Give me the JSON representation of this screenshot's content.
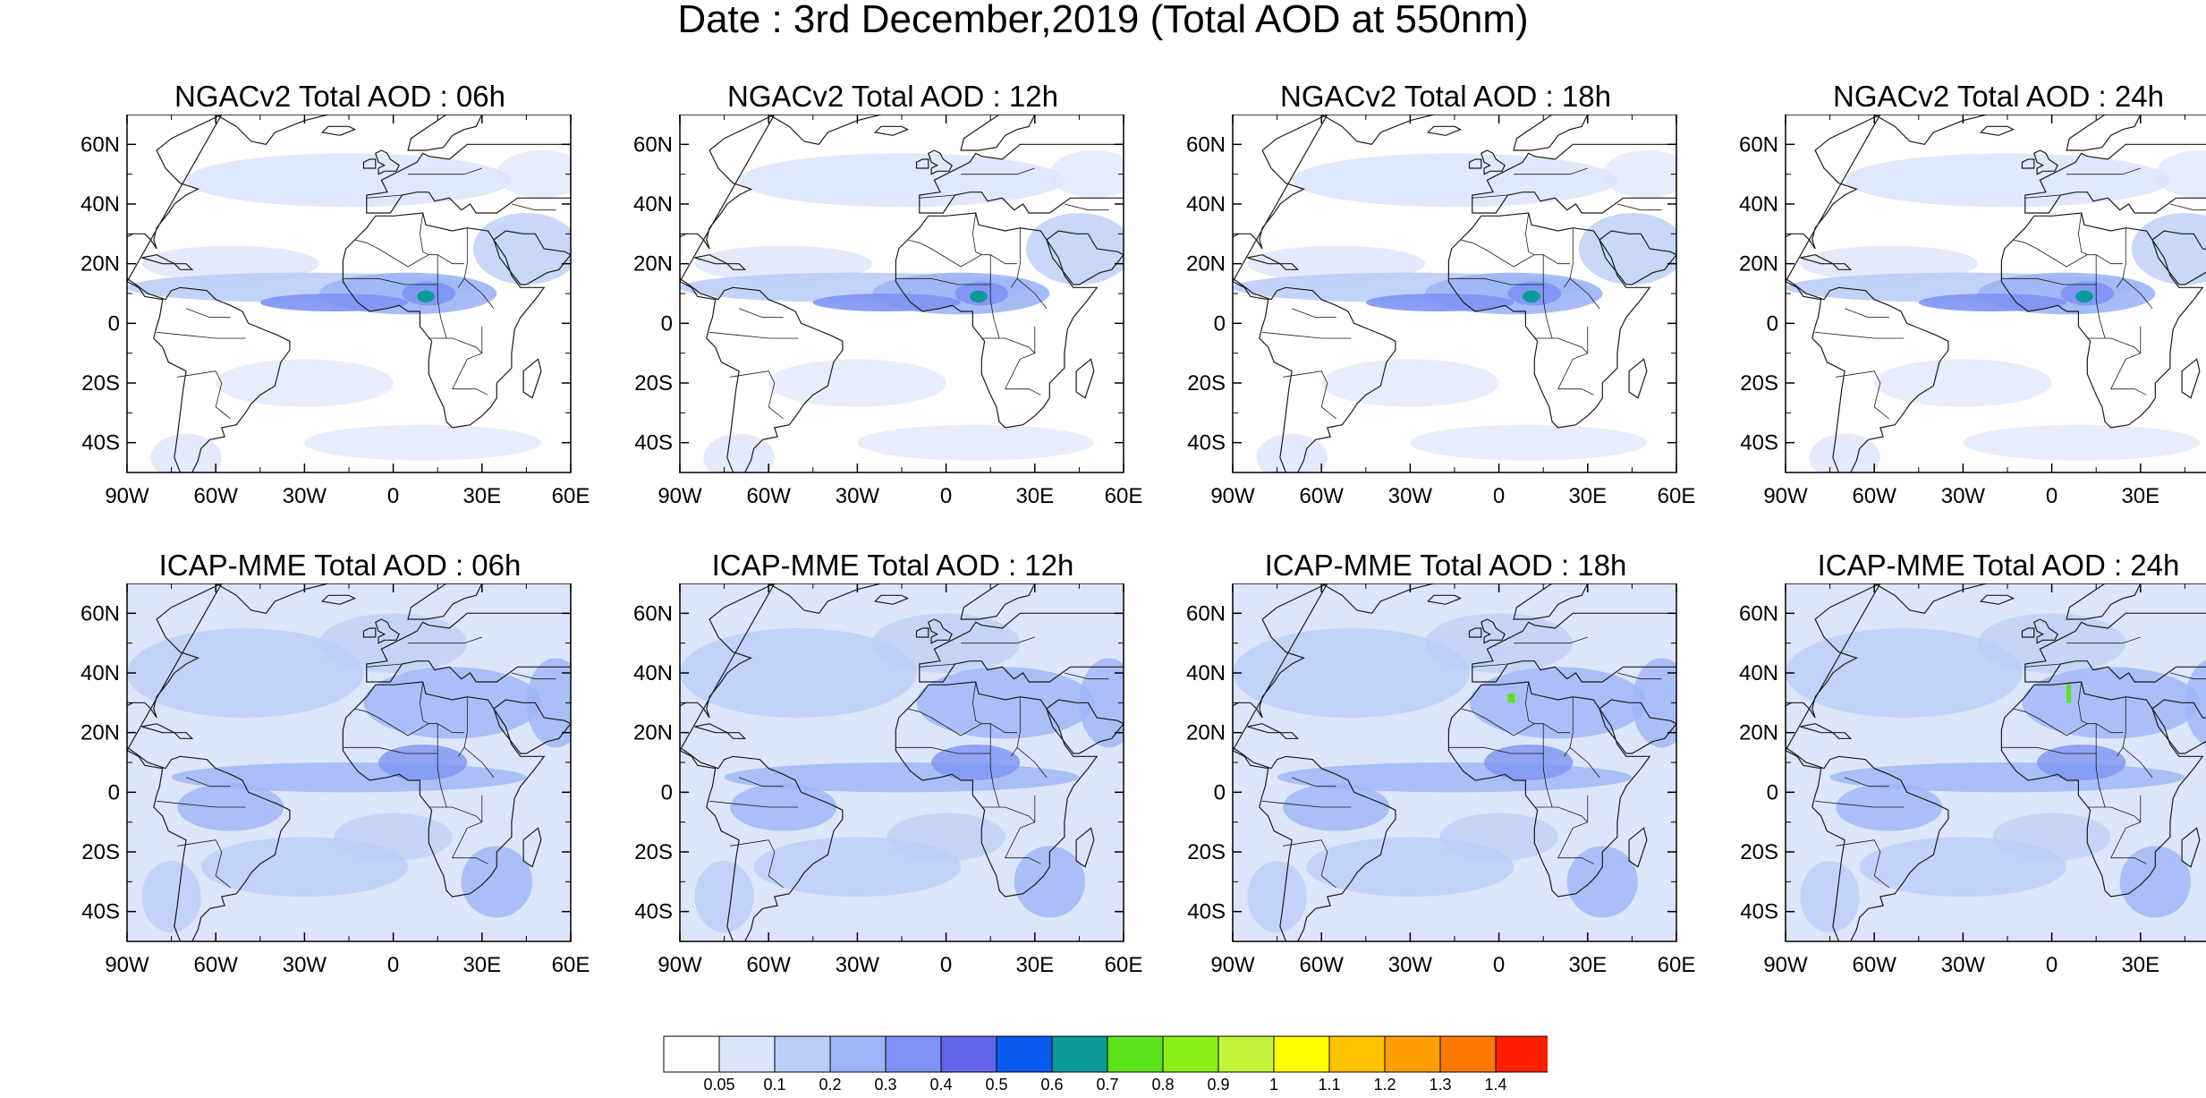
{
  "title": "Date : 3rd December,2019 (Total AOD at 550nm)",
  "axes": {
    "lon_ticks": [
      "90W",
      "60W",
      "30W",
      "0",
      "30E",
      "60E"
    ],
    "lat_ticks": [
      "60N",
      "40N",
      "20N",
      "0",
      "20S",
      "40S"
    ]
  },
  "panels": [
    {
      "title": "NGACv2 Total AOD : 06h",
      "model": "NGACv2",
      "hour": "06h"
    },
    {
      "title": "NGACv2 Total AOD : 12h",
      "model": "NGACv2",
      "hour": "12h"
    },
    {
      "title": "NGACv2 Total AOD : 18h",
      "model": "NGACv2",
      "hour": "18h"
    },
    {
      "title": "NGACv2 Total AOD : 24h",
      "model": "NGACv2",
      "hour": "24h"
    },
    {
      "title": "ICAP-MME Total AOD : 06h",
      "model": "ICAP-MME",
      "hour": "06h"
    },
    {
      "title": "ICAP-MME Total AOD : 12h",
      "model": "ICAP-MME",
      "hour": "12h"
    },
    {
      "title": "ICAP-MME Total AOD : 18h",
      "model": "ICAP-MME",
      "hour": "18h"
    },
    {
      "title": "ICAP-MME Total AOD : 24h",
      "model": "ICAP-MME",
      "hour": "24h"
    }
  ],
  "colorbar": {
    "labels": [
      "0.05",
      "0.1",
      "0.2",
      "0.3",
      "0.4",
      "0.5",
      "0.6",
      "0.7",
      "0.8",
      "0.9",
      "1",
      "1.1",
      "1.2",
      "1.3",
      "1.4"
    ],
    "colors": [
      "#ffffff",
      "#dde5fb",
      "#bccdf7",
      "#9db5f6",
      "#7e93f3",
      "#6464ea",
      "#0a5cf0",
      "#0a9a9a",
      "#5ce21a",
      "#8cf014",
      "#c2f53a",
      "#ffff00",
      "#ffc200",
      "#ff9e00",
      "#ff7800",
      "#ff1e00"
    ]
  },
  "map_colors": {
    "c1": "#dde5fb",
    "c2": "#bccdf7",
    "c3": "#9db5f6",
    "c4": "#7e93f3",
    "c5": "#6464ea",
    "c7": "#0a9a9a",
    "c8": "#5ce21a",
    "coast": "#1a1a1a"
  }
}
